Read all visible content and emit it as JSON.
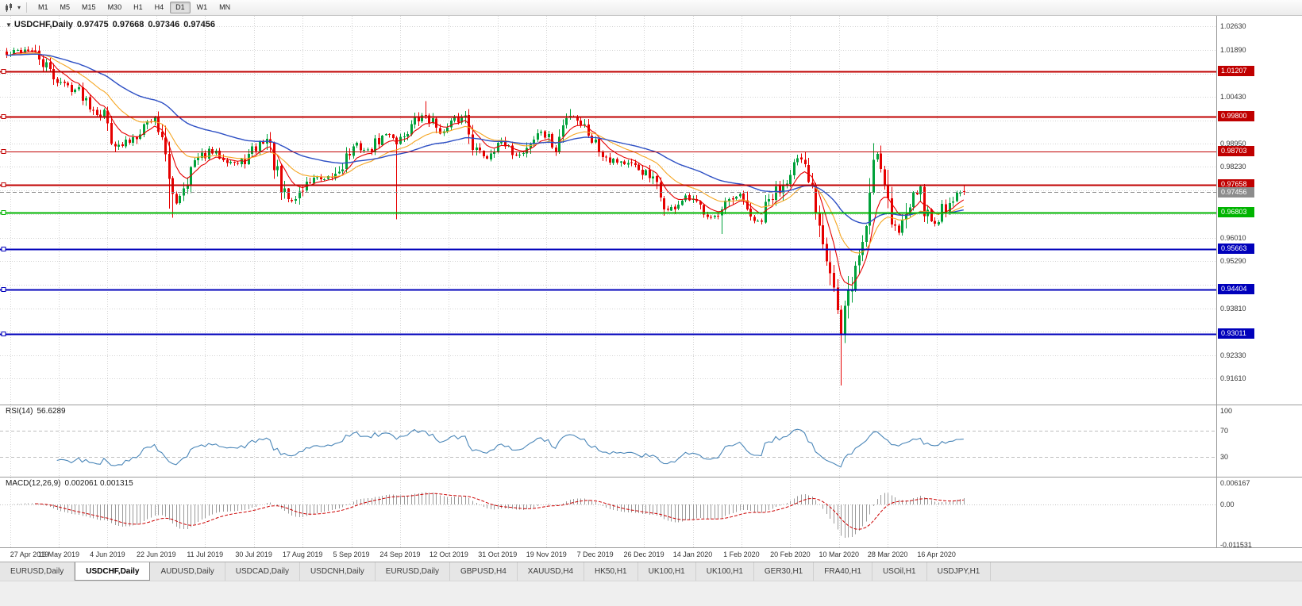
{
  "toolbar": {
    "timeframes": [
      "M1",
      "M5",
      "M15",
      "M30",
      "H1",
      "H4",
      "D1",
      "W1",
      "MN"
    ],
    "active_timeframe": "D1"
  },
  "chart": {
    "info": {
      "symbol": "USDCHF,Daily",
      "open": "0.97475",
      "high": "0.97668",
      "low": "0.97346",
      "close": "0.97456"
    }
  },
  "chart_data": {
    "type": "candlestick",
    "symbol": "USDCHF",
    "timeframe": "Daily",
    "ohlc_header": {
      "open": 0.97475,
      "high": 0.97668,
      "low": 0.97346,
      "close": 0.97456
    },
    "y_axis": {
      "price_top": 1.02952,
      "price_bottom": 0.908,
      "ticks": [
        1.0263,
        1.0189,
        1.0043,
        0.9895,
        0.9823,
        0.9601,
        0.9529,
        0.9381,
        0.9233,
        0.9161
      ],
      "grid_ticks": [
        1.0263,
        1.0189,
        1.0115,
        1.0043,
        0.9969,
        0.9895,
        0.9823,
        0.9749,
        0.9675,
        0.9601,
        0.9529,
        0.9455,
        0.9381,
        0.9307,
        0.9233,
        0.9161
      ]
    },
    "x_axis": {
      "dates": [
        "27 Apr 2019",
        "16 May 2019",
        "4 Jun 2019",
        "22 Jun 2019",
        "11 Jul 2019",
        "30 Jul 2019",
        "17 Aug 2019",
        "5 Sep 2019",
        "24 Sep 2019",
        "12 Oct 2019",
        "31 Oct 2019",
        "19 Nov 2019",
        "7 Dec 2019",
        "26 Dec 2019",
        "14 Jan 2020",
        "1 Feb 2020",
        "20 Feb 2020",
        "10 Mar 2020",
        "28 Mar 2020",
        "16 Apr 2020"
      ]
    },
    "horizontal_lines": [
      {
        "price": 1.01207,
        "label": "1.01207",
        "color": "#c00000",
        "width": 2
      },
      {
        "price": 0.998,
        "label": "0.99800",
        "color": "#c00000",
        "width": 2
      },
      {
        "price": 0.98703,
        "label": "0.98703",
        "color": "#c00000",
        "width": 1
      },
      {
        "price": 0.97658,
        "label": "0.97658",
        "color": "#c00000",
        "width": 2
      },
      {
        "price": 0.96803,
        "label": "0.96803",
        "color": "#00b400",
        "width": 2
      },
      {
        "price": 0.95663,
        "label": "0.95663",
        "color": "#0000bb",
        "width": 2
      },
      {
        "price": 0.94404,
        "label": "0.94404",
        "color": "#0000bb",
        "width": 2
      },
      {
        "price": 0.93011,
        "label": "0.93011",
        "color": "#0000bb",
        "width": 2
      }
    ],
    "current_price": {
      "value": 0.97456,
      "label": "0.97456",
      "color": "#8c8c8c"
    },
    "candles": {
      "count": 266,
      "seed": 42,
      "up_color": "#00a13a",
      "down_color": "#e60000",
      "anchors": [
        [
          0,
          1.017
        ],
        [
          3,
          1.0185
        ],
        [
          6,
          1.0192
        ],
        [
          9,
          1.016
        ],
        [
          13,
          1.0105
        ],
        [
          16,
          1.008
        ],
        [
          20,
          1.006
        ],
        [
          24,
          1.001
        ],
        [
          27,
          0.9985
        ],
        [
          29,
          0.993
        ],
        [
          31,
          0.988
        ],
        [
          34,
          0.9905
        ],
        [
          38,
          0.9955
        ],
        [
          41,
          0.9975
        ],
        [
          43,
          0.993
        ],
        [
          45,
          0.976
        ],
        [
          47,
          0.9715
        ],
        [
          49,
          0.977
        ],
        [
          52,
          0.9835
        ],
        [
          56,
          0.987
        ],
        [
          60,
          0.9855
        ],
        [
          64,
          0.983
        ],
        [
          67,
          0.9855
        ],
        [
          70,
          0.9895
        ],
        [
          72,
          0.991
        ],
        [
          74,
          0.984
        ],
        [
          76,
          0.974
        ],
        [
          79,
          0.9715
        ],
        [
          82,
          0.9755
        ],
        [
          85,
          0.979
        ],
        [
          88,
          0.9775
        ],
        [
          91,
          0.98
        ],
        [
          94,
          0.9855
        ],
        [
          97,
          0.989
        ],
        [
          100,
          0.987
        ],
        [
          103,
          0.9905
        ],
        [
          106,
          0.993
        ],
        [
          108,
          0.99
        ],
        [
          110,
          0.9925
        ],
        [
          113,
          0.9965
        ],
        [
          116,
          0.9985
        ],
        [
          118,
          0.996
        ],
        [
          121,
          0.993
        ],
        [
          124,
          0.9965
        ],
        [
          127,
          0.9985
        ],
        [
          130,
          0.987
        ],
        [
          133,
          0.9855
        ],
        [
          136,
          0.9905
        ],
        [
          139,
          0.9875
        ],
        [
          142,
          0.986
        ],
        [
          145,
          0.99
        ],
        [
          148,
          0.9935
        ],
        [
          150,
          0.9905
        ],
        [
          152,
          0.987
        ],
        [
          154,
          0.995
        ],
        [
          156,
          0.999
        ],
        [
          158,
          0.9975
        ],
        [
          161,
          0.9935
        ],
        [
          164,
          0.988
        ],
        [
          167,
          0.985
        ],
        [
          170,
          0.984
        ],
        [
          173,
          0.9825
        ],
        [
          176,
          0.981
        ],
        [
          179,
          0.9775
        ],
        [
          181,
          0.973
        ],
        [
          183,
          0.9685
        ],
        [
          185,
          0.97
        ],
        [
          188,
          0.9725
        ],
        [
          191,
          0.9705
        ],
        [
          194,
          0.968
        ],
        [
          197,
          0.9665
        ],
        [
          200,
          0.971
        ],
        [
          203,
          0.973
        ],
        [
          205,
          0.97
        ],
        [
          207,
          0.964
        ],
        [
          209,
          0.966
        ],
        [
          211,
          0.9715
        ],
        [
          213,
          0.9745
        ],
        [
          215,
          0.9775
        ],
        [
          217,
          0.982
        ],
        [
          219,
          0.9845
        ],
        [
          221,
          0.9805
        ],
        [
          223,
          0.975
        ],
        [
          225,
          0.9655
        ],
        [
          227,
          0.956
        ],
        [
          229,
          0.945
        ],
        [
          231,
          0.929
        ],
        [
          232,
          0.937
        ],
        [
          234,
          0.946
        ],
        [
          236,
          0.9545
        ],
        [
          238,
          0.964
        ],
        [
          240,
          0.985
        ],
        [
          241,
          0.987
        ],
        [
          243,
          0.979
        ],
        [
          245,
          0.966
        ],
        [
          247,
          0.9615
        ],
        [
          249,
          0.968
        ],
        [
          251,
          0.9765
        ],
        [
          253,
          0.973
        ],
        [
          255,
          0.9665
        ],
        [
          257,
          0.9645
        ],
        [
          259,
          0.969
        ],
        [
          261,
          0.9715
        ],
        [
          263,
          0.9735
        ],
        [
          265,
          0.97456
        ]
      ],
      "wick_events": [
        {
          "index": 6,
          "high": 1.02
        },
        {
          "index": 45,
          "low": 0.9693
        },
        {
          "index": 46,
          "low": 0.9664
        },
        {
          "index": 108,
          "low": 0.9659
        },
        {
          "index": 116,
          "high": 1.0028
        },
        {
          "index": 156,
          "high": 1.0004
        },
        {
          "index": 198,
          "low": 0.9613
        },
        {
          "index": 231,
          "low": 0.914
        },
        {
          "index": 240,
          "high": 0.9897
        }
      ]
    },
    "moving_averages": [
      {
        "name": "MA fast",
        "period": 8,
        "color": "#e60000"
      },
      {
        "name": "MA mid",
        "period": 20,
        "color": "#f5a623"
      },
      {
        "name": "MA slow",
        "period": 50,
        "color": "#2d4fc4"
      }
    ],
    "rsi": {
      "title": "RSI(14)",
      "value": "56.6289",
      "period": 14,
      "color": "#4a86b8",
      "levels": [
        70,
        30
      ],
      "scale_labels": [
        {
          "value": 100,
          "label": "100"
        },
        {
          "value": 70,
          "label": "70"
        },
        {
          "value": 30,
          "label": "30"
        }
      ],
      "range": [
        0,
        100
      ]
    },
    "macd": {
      "title": "MACD(12,26,9)",
      "values": "0.002061 0.001315",
      "fast": 12,
      "slow": 26,
      "signal": 9,
      "histogram_color": "#9a9a9a",
      "signal_color": "#cc0000",
      "scale_labels": [
        {
          "value": 0.006167,
          "label": "0.006167"
        },
        {
          "value": 0,
          "label": "0.00"
        },
        {
          "value": -0.011531,
          "label": "-0.011531"
        }
      ],
      "range": [
        -0.011531,
        0.006167
      ]
    }
  },
  "tabs": {
    "items": [
      "EURUSD,Daily",
      "USDCHF,Daily",
      "AUDUSD,Daily",
      "USDCAD,Daily",
      "USDCNH,Daily",
      "EURUSD,Daily",
      "GBPUSD,H4",
      "XAUUSD,H4",
      "HK50,H1",
      "UK100,H1",
      "UK100,H1",
      "GER30,H1",
      "FRA40,H1",
      "USOil,H1",
      "USDJPY,H1"
    ],
    "active_index": 1
  }
}
